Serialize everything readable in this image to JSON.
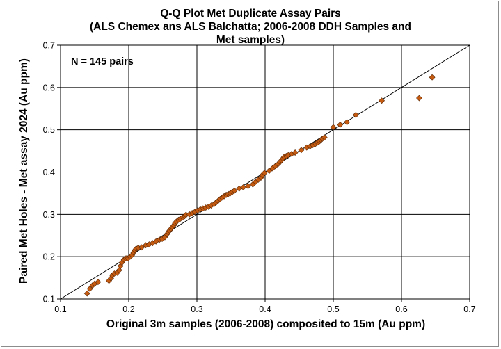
{
  "chart_data": {
    "type": "scatter",
    "title_lines": [
      "Q-Q Plot Met Duplicate Assay Pairs",
      "(ALS Chemex ans ALS Balchatta; 2006-2008 DDH Samples and",
      "Met samples)"
    ],
    "xlabel": "Original 3m samples (2006-2008) composited to 15m (Au ppm)",
    "ylabel": "Paired Met Holes - Met assay 2024 (Au ppm)",
    "annotation": "N = 145 pairs",
    "xlim": [
      0.1,
      0.7
    ],
    "ylim": [
      0.1,
      0.7
    ],
    "x_ticks": [
      "0.1",
      "0.2",
      "0.3",
      "0.4",
      "0.5",
      "0.6",
      "0.7"
    ],
    "y_ticks": [
      "0.1",
      "0.2",
      "0.3",
      "0.4",
      "0.5",
      "0.6",
      "0.7"
    ],
    "grid": true,
    "marker_color": "#C55A11",
    "reference_line": {
      "type": "1:1",
      "color": "#000000"
    },
    "points": [
      [
        0.139,
        0.113
      ],
      [
        0.143,
        0.124
      ],
      [
        0.147,
        0.132
      ],
      [
        0.15,
        0.136
      ],
      [
        0.155,
        0.14
      ],
      [
        0.171,
        0.143
      ],
      [
        0.174,
        0.149
      ],
      [
        0.176,
        0.156
      ],
      [
        0.179,
        0.16
      ],
      [
        0.183,
        0.162
      ],
      [
        0.186,
        0.168
      ],
      [
        0.188,
        0.178
      ],
      [
        0.19,
        0.186
      ],
      [
        0.193,
        0.193
      ],
      [
        0.196,
        0.196
      ],
      [
        0.199,
        0.196
      ],
      [
        0.202,
        0.2
      ],
      [
        0.205,
        0.204
      ],
      [
        0.207,
        0.21
      ],
      [
        0.209,
        0.215
      ],
      [
        0.211,
        0.219
      ],
      [
        0.214,
        0.221
      ],
      [
        0.219,
        0.222
      ],
      [
        0.225,
        0.227
      ],
      [
        0.23,
        0.229
      ],
      [
        0.235,
        0.232
      ],
      [
        0.24,
        0.236
      ],
      [
        0.245,
        0.24
      ],
      [
        0.249,
        0.242
      ],
      [
        0.253,
        0.246
      ],
      [
        0.256,
        0.253
      ],
      [
        0.258,
        0.258
      ],
      [
        0.26,
        0.262
      ],
      [
        0.262,
        0.266
      ],
      [
        0.264,
        0.27
      ],
      [
        0.266,
        0.274
      ],
      [
        0.268,
        0.279
      ],
      [
        0.27,
        0.283
      ],
      [
        0.273,
        0.287
      ],
      [
        0.276,
        0.29
      ],
      [
        0.279,
        0.293
      ],
      [
        0.282,
        0.296
      ],
      [
        0.284,
        0.299
      ],
      [
        0.289,
        0.3
      ],
      [
        0.293,
        0.303
      ],
      [
        0.297,
        0.306
      ],
      [
        0.301,
        0.309
      ],
      [
        0.305,
        0.312
      ],
      [
        0.309,
        0.314
      ],
      [
        0.313,
        0.316
      ],
      [
        0.317,
        0.318
      ],
      [
        0.321,
        0.321
      ],
      [
        0.325,
        0.324
      ],
      [
        0.328,
        0.328
      ],
      [
        0.331,
        0.332
      ],
      [
        0.334,
        0.336
      ],
      [
        0.337,
        0.34
      ],
      [
        0.34,
        0.343
      ],
      [
        0.343,
        0.346
      ],
      [
        0.346,
        0.348
      ],
      [
        0.349,
        0.35
      ],
      [
        0.352,
        0.353
      ],
      [
        0.355,
        0.356
      ],
      [
        0.362,
        0.361
      ],
      [
        0.368,
        0.364
      ],
      [
        0.375,
        0.367
      ],
      [
        0.382,
        0.371
      ],
      [
        0.386,
        0.377
      ],
      [
        0.39,
        0.382
      ],
      [
        0.394,
        0.387
      ],
      [
        0.396,
        0.393
      ],
      [
        0.399,
        0.398
      ],
      [
        0.406,
        0.403
      ],
      [
        0.411,
        0.409
      ],
      [
        0.415,
        0.414
      ],
      [
        0.419,
        0.419
      ],
      [
        0.422,
        0.424
      ],
      [
        0.424,
        0.428
      ],
      [
        0.426,
        0.432
      ],
      [
        0.428,
        0.436
      ],
      [
        0.431,
        0.438
      ],
      [
        0.434,
        0.44
      ],
      [
        0.439,
        0.443
      ],
      [
        0.444,
        0.446
      ],
      [
        0.453,
        0.452
      ],
      [
        0.461,
        0.458
      ],
      [
        0.466,
        0.461
      ],
      [
        0.47,
        0.464
      ],
      [
        0.474,
        0.467
      ],
      [
        0.477,
        0.47
      ],
      [
        0.48,
        0.473
      ],
      [
        0.482,
        0.476
      ],
      [
        0.484,
        0.479
      ],
      [
        0.487,
        0.482
      ],
      [
        0.5,
        0.506
      ],
      [
        0.51,
        0.512
      ],
      [
        0.52,
        0.518
      ],
      [
        0.533,
        0.535
      ],
      [
        0.571,
        0.569
      ],
      [
        0.626,
        0.575
      ],
      [
        0.645,
        0.624
      ]
    ]
  }
}
